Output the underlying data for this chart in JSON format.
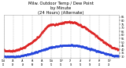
{
  "title": "Milw. Outdoor Temp / Dew Point\nby Minute\n(24 Hours) (Alternate)",
  "title_fontsize": 3.8,
  "bg_color": "#ffffff",
  "plot_bg_color": "#ffffff",
  "grid_color": "#aaaaaa",
  "temp_color": "#dd2222",
  "dew_color": "#2244dd",
  "tick_color": "#000000",
  "ylim": [
    28,
    88
  ],
  "yticks": [
    30,
    35,
    40,
    45,
    50,
    55,
    60,
    65,
    70,
    75,
    80,
    85
  ],
  "n_points": 1440,
  "temp_seed": 42,
  "dew_seed": 7
}
